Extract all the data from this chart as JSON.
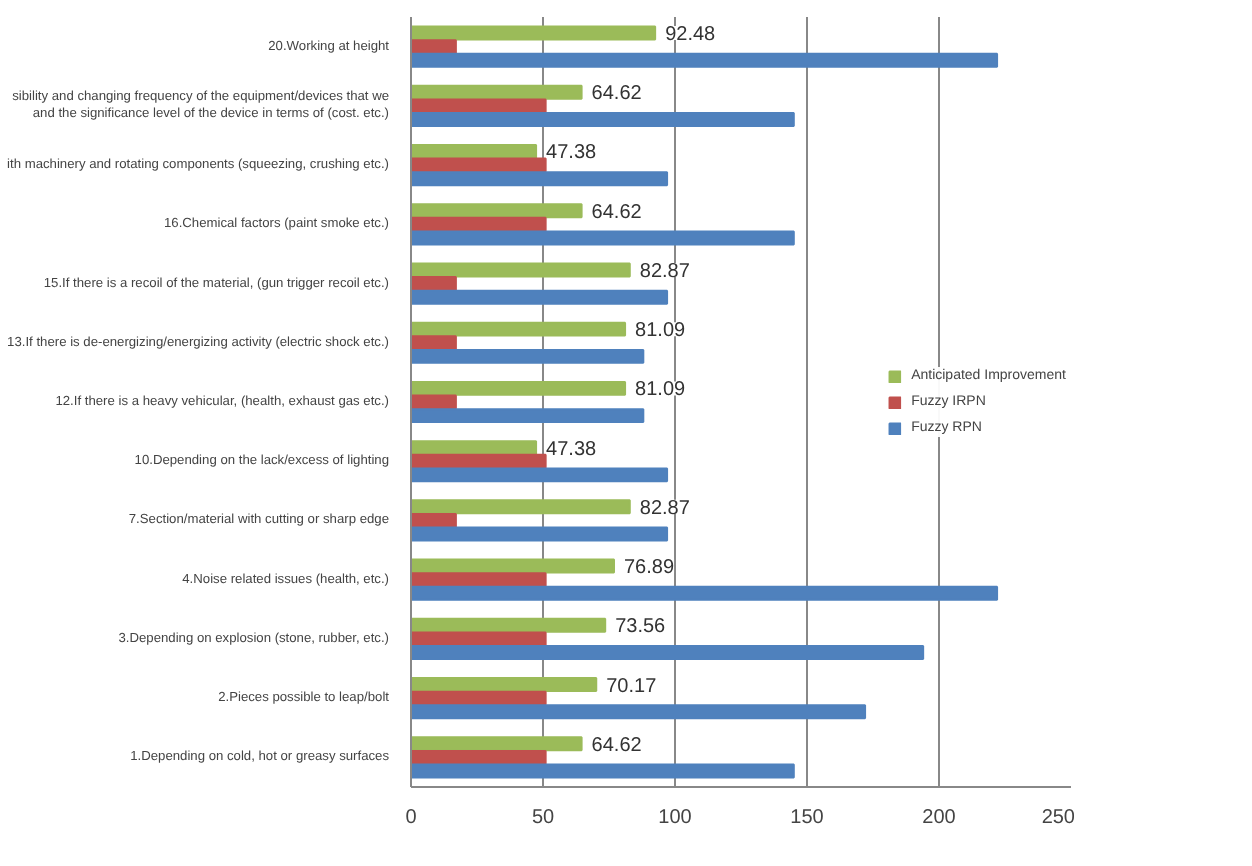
{
  "chart_data": {
    "type": "bar",
    "orientation": "horizontal",
    "categories": [
      "20.Working at height",
      "sibility and changing frequency of the equipment/devices that we\nand the significance level of the device in terms of (cost. etc.)",
      "ith machinery and rotating components (squeezing, crushing etc.)",
      "16.Chemical factors (paint smoke etc.)",
      "15.If there is a recoil of the material, (gun trigger recoil etc.)",
      "13.If there is de-energizing/energizing activity (electric shock etc.)",
      "12.If there is a heavy vehicular, (health, exhaust gas etc.)",
      "10.Depending on the lack/excess of lighting",
      "7.Section/material with cutting or sharp edge",
      "4.Noise related issues (health, etc.)",
      "3.Depending on explosion (stone, rubber, etc.)",
      "2.Pieces possible to leap/bolt",
      "1.Depending on cold, hot or greasy surfaces"
    ],
    "series": [
      {
        "name": "Anticipated Improvement",
        "color": "#9bbb59",
        "values": [
          92.48,
          64.62,
          47.38,
          64.62,
          82.87,
          81.09,
          81.09,
          47.38,
          82.87,
          76.89,
          73.56,
          70.17,
          64.62
        ],
        "value_labels": [
          "92.48",
          "64.62",
          "47.38",
          "64.62",
          "82.87",
          "81.09",
          "81.09",
          "47.38",
          "82.87",
          "76.89",
          "73.56",
          "70.17",
          "64.62"
        ]
      },
      {
        "name": "Fuzzy IRPN",
        "color": "#c0504d",
        "values": [
          17,
          51,
          51,
          51,
          17,
          17,
          17,
          51,
          17,
          51,
          51,
          51,
          51
        ]
      },
      {
        "name": "Fuzzy RPN",
        "color": "#4f81bd",
        "values": [
          222,
          145,
          97,
          145,
          97,
          88,
          88,
          97,
          97,
          222,
          194,
          172,
          145
        ]
      }
    ],
    "xlim": [
      0,
      250
    ],
    "xticks": [
      0,
      50,
      100,
      150,
      200,
      250
    ],
    "grid": "x",
    "legend": "right"
  }
}
